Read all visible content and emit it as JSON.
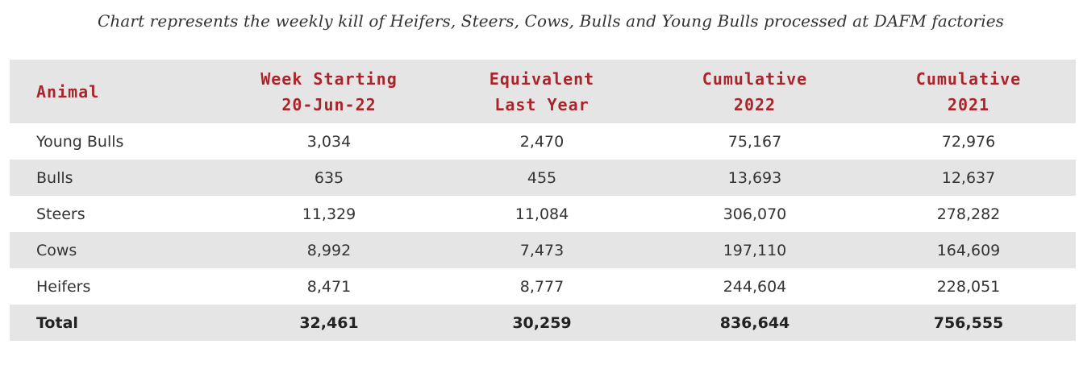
{
  "caption": "Chart represents the weekly kill of Heifers, Steers, Cows, Bulls and Young Bulls processed at DAFM factories",
  "headers": [
    {
      "line1": "Animal",
      "line2": ""
    },
    {
      "line1": "Week Starting",
      "line2": "20-Jun-22"
    },
    {
      "line1": "Equivalent",
      "line2": "Last Year"
    },
    {
      "line1": "Cumulative",
      "line2": "2022"
    },
    {
      "line1": "Cumulative",
      "line2": "2021"
    }
  ],
  "rows": [
    {
      "animal": "Young Bulls",
      "week": "3,034",
      "last_year": "2,470",
      "cum_2022": "75,167",
      "cum_2021": "72,976"
    },
    {
      "animal": "Bulls",
      "week": "635",
      "last_year": "455",
      "cum_2022": "13,693",
      "cum_2021": "12,637"
    },
    {
      "animal": "Steers",
      "week": "11,329",
      "last_year": "11,084",
      "cum_2022": "306,070",
      "cum_2021": "278,282"
    },
    {
      "animal": "Cows",
      "week": "8,992",
      "last_year": "7,473",
      "cum_2022": "197,110",
      "cum_2021": "164,609"
    },
    {
      "animal": "Heifers",
      "week": "8,471",
      "last_year": "8,777",
      "cum_2022": "244,604",
      "cum_2021": "228,051"
    }
  ],
  "total": {
    "animal": "Total",
    "week": "32,461",
    "last_year": "30,259",
    "cum_2022": "836,644",
    "cum_2021": "756,555"
  },
  "colors": {
    "header_text": "#a8262b",
    "stripe": "#e5e5e5",
    "body_text": "#333333"
  }
}
